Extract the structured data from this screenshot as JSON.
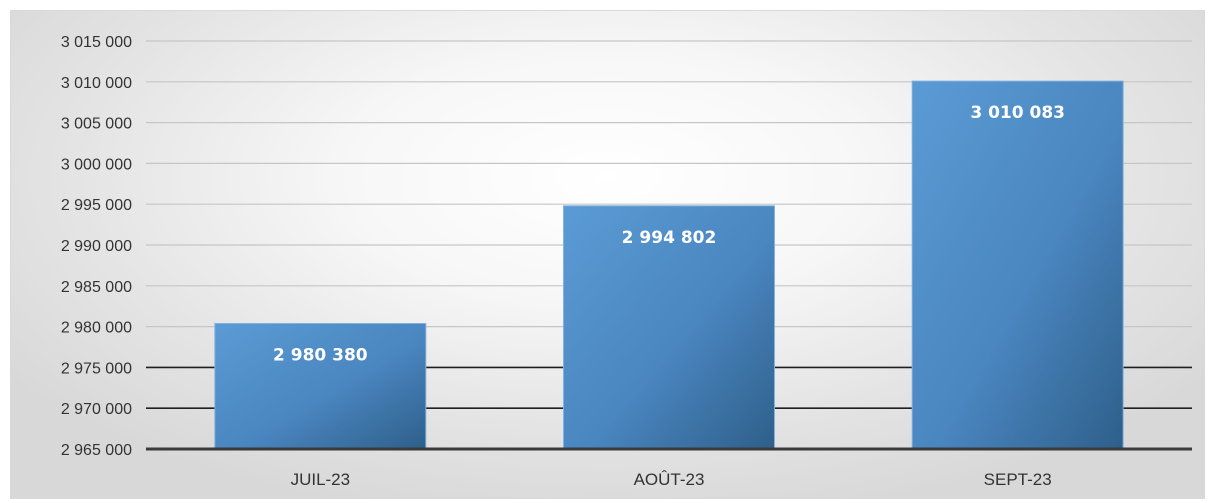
{
  "chart_data": {
    "type": "bar",
    "categories": [
      "JUIL-23",
      "AOÛT-23",
      "SEPT-23"
    ],
    "values": [
      2980380,
      2994802,
      3010083
    ],
    "data_labels": [
      "2 980 380",
      "2 994 802",
      "3 010 083"
    ],
    "ylim": [
      2965000,
      3015000
    ],
    "y_ticks": [
      2965000,
      2970000,
      2975000,
      2980000,
      2985000,
      2990000,
      2995000,
      3000000,
      3005000,
      3010000,
      3015000
    ],
    "y_tick_labels": [
      "2 965 000",
      "2 970 000",
      "2 975 000",
      "2 980 000",
      "2 985 000",
      "2 990 000",
      "2 995 000",
      "3 000 000",
      "3 005 000",
      "3 010 000",
      "3 015 000"
    ],
    "grid": true,
    "legend": "none",
    "colors": {
      "bar_light": "#5b9bd5",
      "bar_dark": "#2e5f8a",
      "grid_upper": "#c6c6c6",
      "grid_lower": "#1f1f1f"
    }
  }
}
